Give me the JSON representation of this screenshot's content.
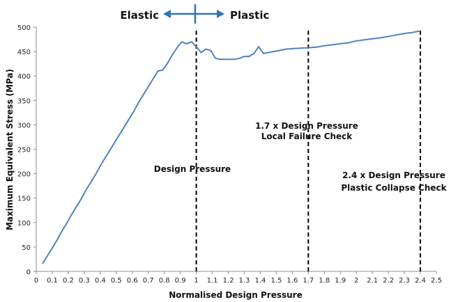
{
  "chart_data": {
    "type": "line",
    "title": "",
    "xlabel": "Normalised Design Pressure",
    "ylabel": "Maximum Equivalent Stress (MPa)",
    "xlim": [
      0,
      2.5
    ],
    "ylim": [
      0,
      500
    ],
    "x_ticks": [
      "0",
      "0.1",
      "0.2",
      "0.3",
      "0.4",
      "0.5",
      "0.6",
      "0.7",
      "0.8",
      "0.9",
      "1",
      "1.1",
      "1.2",
      "1.3",
      "1.4",
      "1.5",
      "1.6",
      "1.7",
      "1.8",
      "1.9",
      "2",
      "2.1",
      "2.2",
      "2.3",
      "2.4",
      "2.5"
    ],
    "y_ticks": [
      "0",
      "50",
      "100",
      "150",
      "200",
      "250",
      "300",
      "350",
      "400",
      "450",
      "500"
    ],
    "grid": false,
    "line_color": "#4f81bd",
    "series": [
      {
        "x": [
          0.04,
          0.07,
          0.1,
          0.13,
          0.16,
          0.19,
          0.22,
          0.25,
          0.28,
          0.31,
          0.34,
          0.37,
          0.4,
          0.43,
          0.46,
          0.49,
          0.52,
          0.55,
          0.58,
          0.61,
          0.64,
          0.67,
          0.7,
          0.73,
          0.76,
          0.79,
          0.82,
          0.85,
          0.88,
          0.91,
          0.94,
          0.97,
          1.0,
          1.03,
          1.06,
          1.09,
          1.12,
          1.15,
          1.18,
          1.21,
          1.24,
          1.27,
          1.3,
          1.33,
          1.36,
          1.39,
          1.42,
          1.45,
          1.48,
          1.5,
          1.53,
          1.56,
          1.6,
          1.65,
          1.7,
          1.75,
          1.8,
          1.85,
          1.9,
          1.95,
          2.0,
          2.05,
          2.1,
          2.15,
          2.2,
          2.25,
          2.3,
          2.35,
          2.38,
          2.4
        ],
        "y": [
          16,
          32,
          48,
          64,
          82,
          98,
          116,
          132,
          148,
          166,
          182,
          198,
          216,
          232,
          248,
          264,
          280,
          296,
          312,
          328,
          346,
          362,
          378,
          394,
          410,
          412,
          426,
          443,
          458,
          470,
          466,
          470,
          460,
          448,
          455,
          452,
          436,
          434,
          434,
          434,
          434,
          436,
          440,
          440,
          446,
          460,
          446,
          448,
          450,
          451,
          453,
          455,
          456,
          457,
          458,
          459,
          462,
          464,
          466,
          468,
          472,
          474,
          476,
          478,
          481,
          484,
          487,
          489,
          491,
          492
        ]
      }
    ],
    "vlines": [
      1.0,
      1.7,
      2.4
    ],
    "annotations": [
      {
        "id": "design",
        "text": "Design Pressure"
      },
      {
        "id": "local_1",
        "text": "1.7 x Design Pressure"
      },
      {
        "id": "local_2",
        "text": "Local Failure Check"
      },
      {
        "id": "plastic_1",
        "text": "2.4 x Design Pressure"
      },
      {
        "id": "plastic_2",
        "text": "Plastic Collapse Check"
      }
    ],
    "regimes": {
      "left": "Elastic",
      "right": "Plastic"
    },
    "arrow_color": "#2e75b6"
  }
}
